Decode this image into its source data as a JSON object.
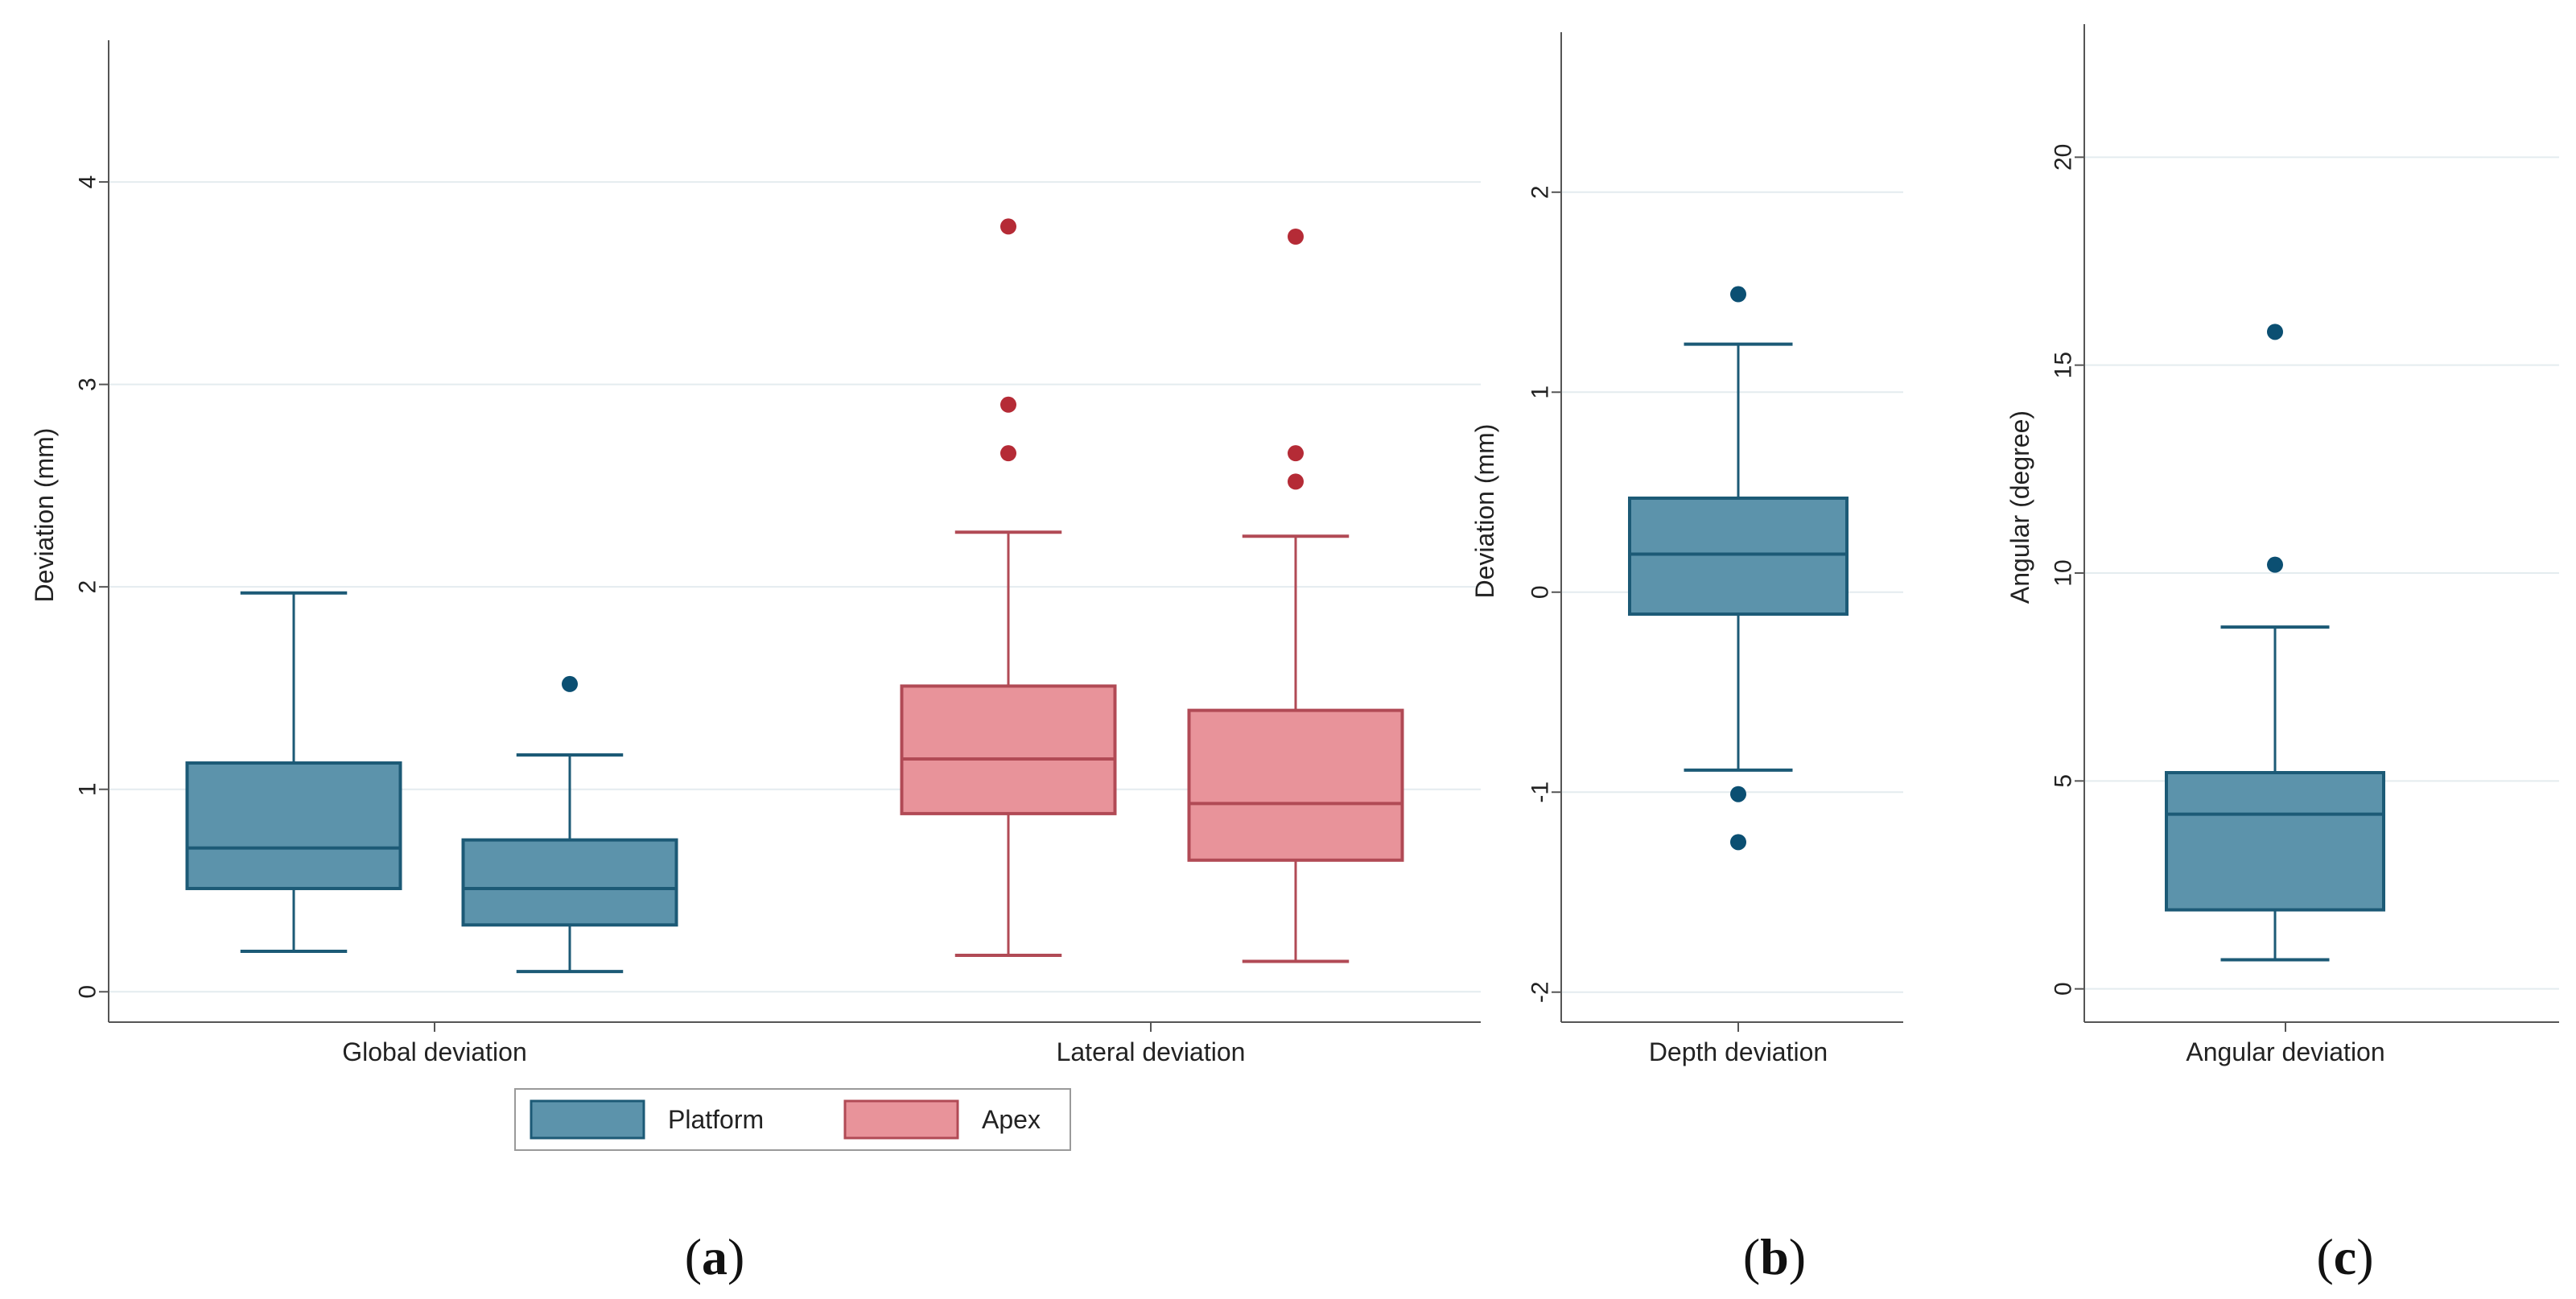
{
  "colors": {
    "platform_fill": "#5c93ab",
    "platform_line": "#1c5a76",
    "platform_point": "#0b4f72",
    "apex_fill": "#e8939a",
    "apex_line": "#b14a55",
    "apex_point": "#b52b36",
    "grid": "#e4ecef",
    "axis": "#555555"
  },
  "panel_labels": {
    "a": {
      "open": "(",
      "letter": "a",
      "close": ")"
    },
    "b": {
      "open": "(",
      "letter": "b",
      "close": ")"
    },
    "c": {
      "open": "(",
      "letter": "c",
      "close": ")"
    }
  },
  "legend": {
    "platform": "Platform",
    "apex": "Apex"
  },
  "chart_data": [
    {
      "type": "box",
      "panel": "a",
      "ylabel": "Deviation (mm)",
      "ylim": [
        -0.15,
        4.7
      ],
      "yticks": [
        0,
        1,
        2,
        3,
        4
      ],
      "grid": true,
      "legend_position": "bottom",
      "categories": [
        "Global deviation",
        "Lateral  deviation"
      ],
      "series": [
        {
          "name": "Platform",
          "color_key": "platform",
          "boxes": [
            {
              "whisker_low": 0.2,
              "q1": 0.51,
              "median": 0.71,
              "q3": 1.13,
              "whisker_high": 1.97,
              "outliers": []
            },
            {
              "whisker_low": 0.1,
              "q1": 0.33,
              "median": 0.51,
              "q3": 0.75,
              "whisker_high": 1.17,
              "outliers": [
                1.52
              ]
            }
          ]
        },
        {
          "name": "Apex",
          "color_key": "apex",
          "boxes": [
            {
              "whisker_low": 0.18,
              "q1": 0.88,
              "median": 1.15,
              "q3": 1.51,
              "whisker_high": 2.27,
              "outliers": [
                3.78,
                2.9,
                2.66
              ]
            },
            {
              "whisker_low": 0.15,
              "q1": 0.65,
              "median": 0.93,
              "q3": 1.39,
              "whisker_high": 2.25,
              "outliers": [
                3.73,
                2.66,
                2.52
              ]
            }
          ]
        }
      ]
    },
    {
      "type": "box",
      "panel": "b",
      "ylabel": "Deviation (mm)",
      "ylim": [
        -2.15,
        2.8
      ],
      "yticks": [
        -2,
        -1,
        0,
        1,
        2
      ],
      "grid": true,
      "categories": [
        "Depth deviation"
      ],
      "series": [
        {
          "name": "",
          "color_key": "platform",
          "boxes": [
            {
              "whisker_low": -0.89,
              "q1": -0.11,
              "median": 0.19,
              "q3": 0.47,
              "whisker_high": 1.24,
              "outliers": [
                1.49,
                -1.01,
                -1.25
              ]
            }
          ]
        }
      ]
    },
    {
      "type": "box",
      "panel": "c",
      "ylabel": "Angular (degree)",
      "ylim": [
        -0.8,
        23.2
      ],
      "yticks": [
        0,
        5,
        10,
        15,
        20
      ],
      "grid": true,
      "categories": [
        "Angular deviation"
      ],
      "series": [
        {
          "name": "",
          "color_key": "platform",
          "boxes": [
            {
              "whisker_low": 0.7,
              "q1": 1.9,
              "median": 4.2,
              "q3": 5.2,
              "whisker_high": 8.7,
              "outliers": [
                15.8,
                10.2
              ]
            }
          ]
        }
      ]
    }
  ]
}
